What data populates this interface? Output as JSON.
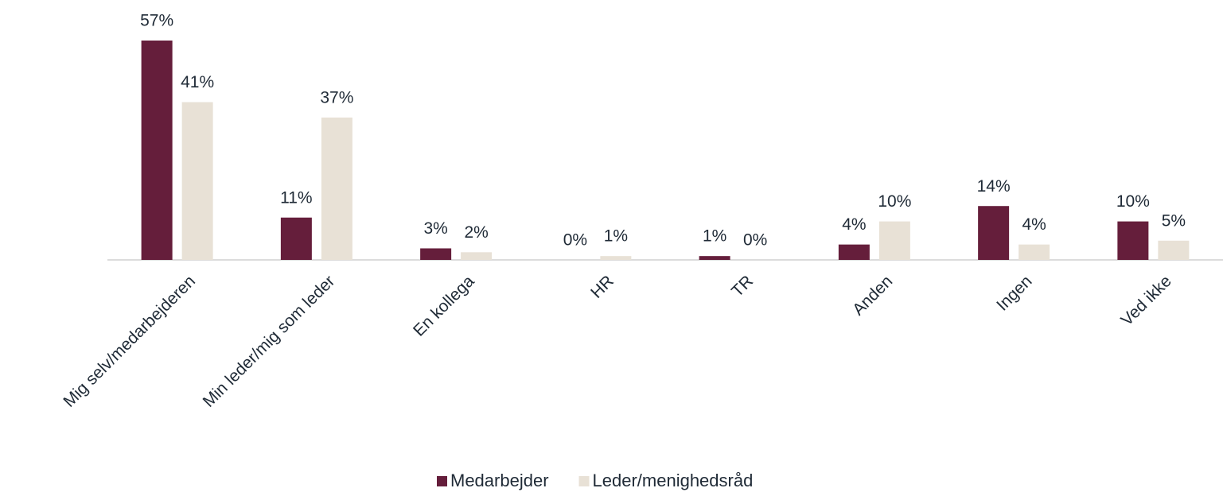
{
  "chart_data": {
    "type": "bar",
    "categories": [
      "Mig selv/medarbejderen",
      "Min leder/mig som leder",
      "En kollega",
      "HR",
      "TR",
      "Anden",
      "Ingen",
      "Ved ikke"
    ],
    "series": [
      {
        "name": "Medarbejder",
        "color": "#651e3b",
        "values": [
          57,
          11,
          3,
          0,
          1,
          4,
          14,
          10
        ],
        "value_labels": [
          "57%",
          "11%",
          "3%",
          "0%",
          "1%",
          "4%",
          "14%",
          "10%"
        ]
      },
      {
        "name": "Leder/menighedsråd",
        "color": "#e8e1d6",
        "values": [
          41,
          37,
          2,
          1,
          0,
          10,
          4,
          5
        ],
        "value_labels": [
          "41%",
          "37%",
          "2%",
          "1%",
          "0%",
          "10%",
          "4%",
          "5%"
        ]
      }
    ],
    "legend": "bottom"
  }
}
